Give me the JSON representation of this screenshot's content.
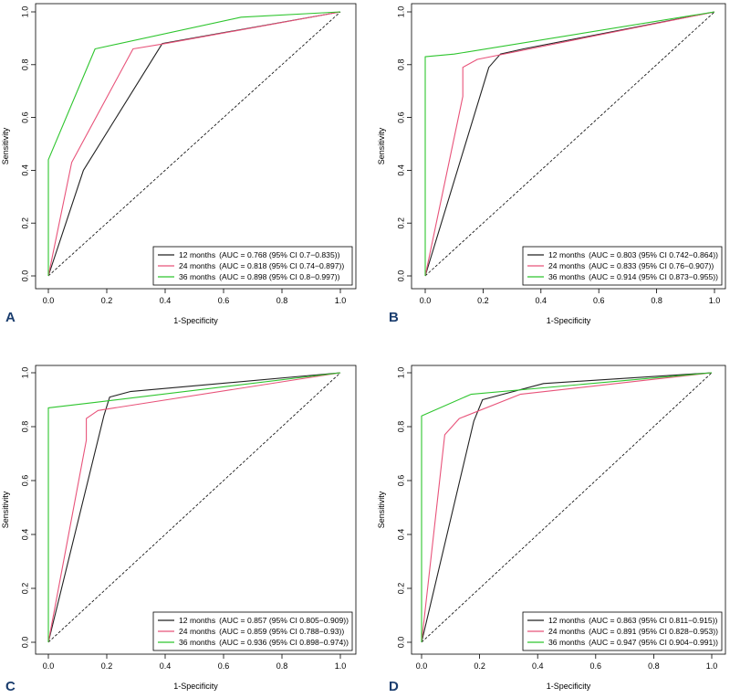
{
  "colors": {
    "m12": "#222222",
    "m24": "#e8537a",
    "m36": "#2ec52e",
    "diag": "#000000"
  },
  "chart_data": [
    {
      "type": "line",
      "panel": "A",
      "xlabel": "1-Specificity",
      "ylabel": "Sensitivity",
      "xlim": [
        0,
        1
      ],
      "ylim": [
        0,
        1
      ],
      "ticks": [
        "0.0",
        "0.2",
        "0.4",
        "0.6",
        "0.8",
        "1.0"
      ],
      "legend_position": "bottom-right",
      "series": [
        {
          "key": "m12",
          "name": "12 months",
          "auc": "(AUC = 0.768 (95% CI 0.7−0.835))",
          "points": [
            [
              0,
              0
            ],
            [
              0.12,
              0.4
            ],
            [
              0.39,
              0.88
            ],
            [
              1,
              1
            ]
          ]
        },
        {
          "key": "m24",
          "name": "24 months",
          "auc": "(AUC = 0.818 (95% CI 0.74−0.897))",
          "points": [
            [
              0,
              0
            ],
            [
              0.08,
              0.43
            ],
            [
              0.29,
              0.86
            ],
            [
              0.4,
              0.88
            ],
            [
              1,
              1
            ]
          ]
        },
        {
          "key": "m36",
          "name": "36 months",
          "auc": "(AUC = 0.898 (95% CI 0.8−0.997))",
          "points": [
            [
              0,
              0
            ],
            [
              0,
              0.44
            ],
            [
              0.16,
              0.86
            ],
            [
              0.66,
              0.98
            ],
            [
              1,
              1
            ]
          ]
        }
      ]
    },
    {
      "type": "line",
      "panel": "B",
      "xlabel": "1-Specificity",
      "ylabel": "Sensitivity",
      "xlim": [
        0,
        1
      ],
      "ylim": [
        0,
        1
      ],
      "ticks": [
        "0.0",
        "0.2",
        "0.4",
        "0.6",
        "0.8",
        "1.0"
      ],
      "legend_position": "bottom-right",
      "series": [
        {
          "key": "m12",
          "name": "12 months",
          "auc": "(AUC = 0.803 (95% CI 0.742−0.864))",
          "points": [
            [
              0,
              0
            ],
            [
              0.22,
              0.79
            ],
            [
              0.26,
              0.84
            ],
            [
              0.34,
              0.86
            ],
            [
              1,
              1
            ]
          ]
        },
        {
          "key": "m24",
          "name": "24 months",
          "auc": "(AUC = 0.833 (95% CI 0.76−0.907))",
          "points": [
            [
              0,
              0
            ],
            [
              0.13,
              0.68
            ],
            [
              0.13,
              0.79
            ],
            [
              0.18,
              0.82
            ],
            [
              1,
              1
            ]
          ]
        },
        {
          "key": "m36",
          "name": "36 months",
          "auc": "(AUC = 0.914 (95% CI 0.873−0.955))",
          "points": [
            [
              0,
              0
            ],
            [
              0,
              0.83
            ],
            [
              0.1,
              0.84
            ],
            [
              1,
              1
            ]
          ]
        }
      ]
    },
    {
      "type": "line",
      "panel": "C",
      "xlabel": "1-Specificity",
      "ylabel": "Sensitivity",
      "xlim": [
        0,
        1
      ],
      "ylim": [
        0,
        1
      ],
      "ticks": [
        "0.0",
        "0.2",
        "0.4",
        "0.6",
        "0.8",
        "1.0"
      ],
      "legend_position": "bottom-right",
      "series": [
        {
          "key": "m12",
          "name": "12 months",
          "auc": "(AUC = 0.857 (95% CI 0.805−0.909))",
          "points": [
            [
              0,
              0
            ],
            [
              0.19,
              0.84
            ],
            [
              0.21,
              0.91
            ],
            [
              0.28,
              0.93
            ],
            [
              1,
              1
            ]
          ]
        },
        {
          "key": "m24",
          "name": "24 months",
          "auc": "(AUC = 0.859 (95% CI 0.788−0.93))",
          "points": [
            [
              0,
              0
            ],
            [
              0.13,
              0.75
            ],
            [
              0.13,
              0.83
            ],
            [
              0.17,
              0.86
            ],
            [
              1,
              1
            ]
          ]
        },
        {
          "key": "m36",
          "name": "36 months",
          "auc": "(AUC = 0.936 (95% CI 0.898−0.974))",
          "points": [
            [
              0,
              0
            ],
            [
              0,
              0.87
            ],
            [
              0.16,
              0.89
            ],
            [
              1,
              1
            ]
          ]
        }
      ]
    },
    {
      "type": "line",
      "panel": "D",
      "xlabel": "1-Specificity",
      "ylabel": "Sensitivity",
      "xlim": [
        0,
        1
      ],
      "ylim": [
        0,
        1
      ],
      "ticks": [
        "0.0",
        "0.2",
        "0.4",
        "0.6",
        "0.8",
        "1.0"
      ],
      "legend_position": "bottom-right",
      "series": [
        {
          "key": "m12",
          "name": "12 months",
          "auc": "(AUC = 0.863 (95% CI 0.811−0.915))",
          "points": [
            [
              0,
              0
            ],
            [
              0.18,
              0.82
            ],
            [
              0.21,
              0.9
            ],
            [
              0.42,
              0.96
            ],
            [
              1,
              1
            ]
          ]
        },
        {
          "key": "m24",
          "name": "24 months",
          "auc": "(AUC = 0.891 (95% CI 0.828−0.953))",
          "points": [
            [
              0,
              0
            ],
            [
              0.08,
              0.77
            ],
            [
              0.13,
              0.83
            ],
            [
              0.34,
              0.92
            ],
            [
              1,
              1
            ]
          ]
        },
        {
          "key": "m36",
          "name": "36 months",
          "auc": "(AUC = 0.947 (95% CI 0.904−0.991))",
          "points": [
            [
              0,
              0
            ],
            [
              0,
              0.84
            ],
            [
              0.17,
              0.92
            ],
            [
              1,
              1
            ]
          ]
        }
      ]
    }
  ]
}
